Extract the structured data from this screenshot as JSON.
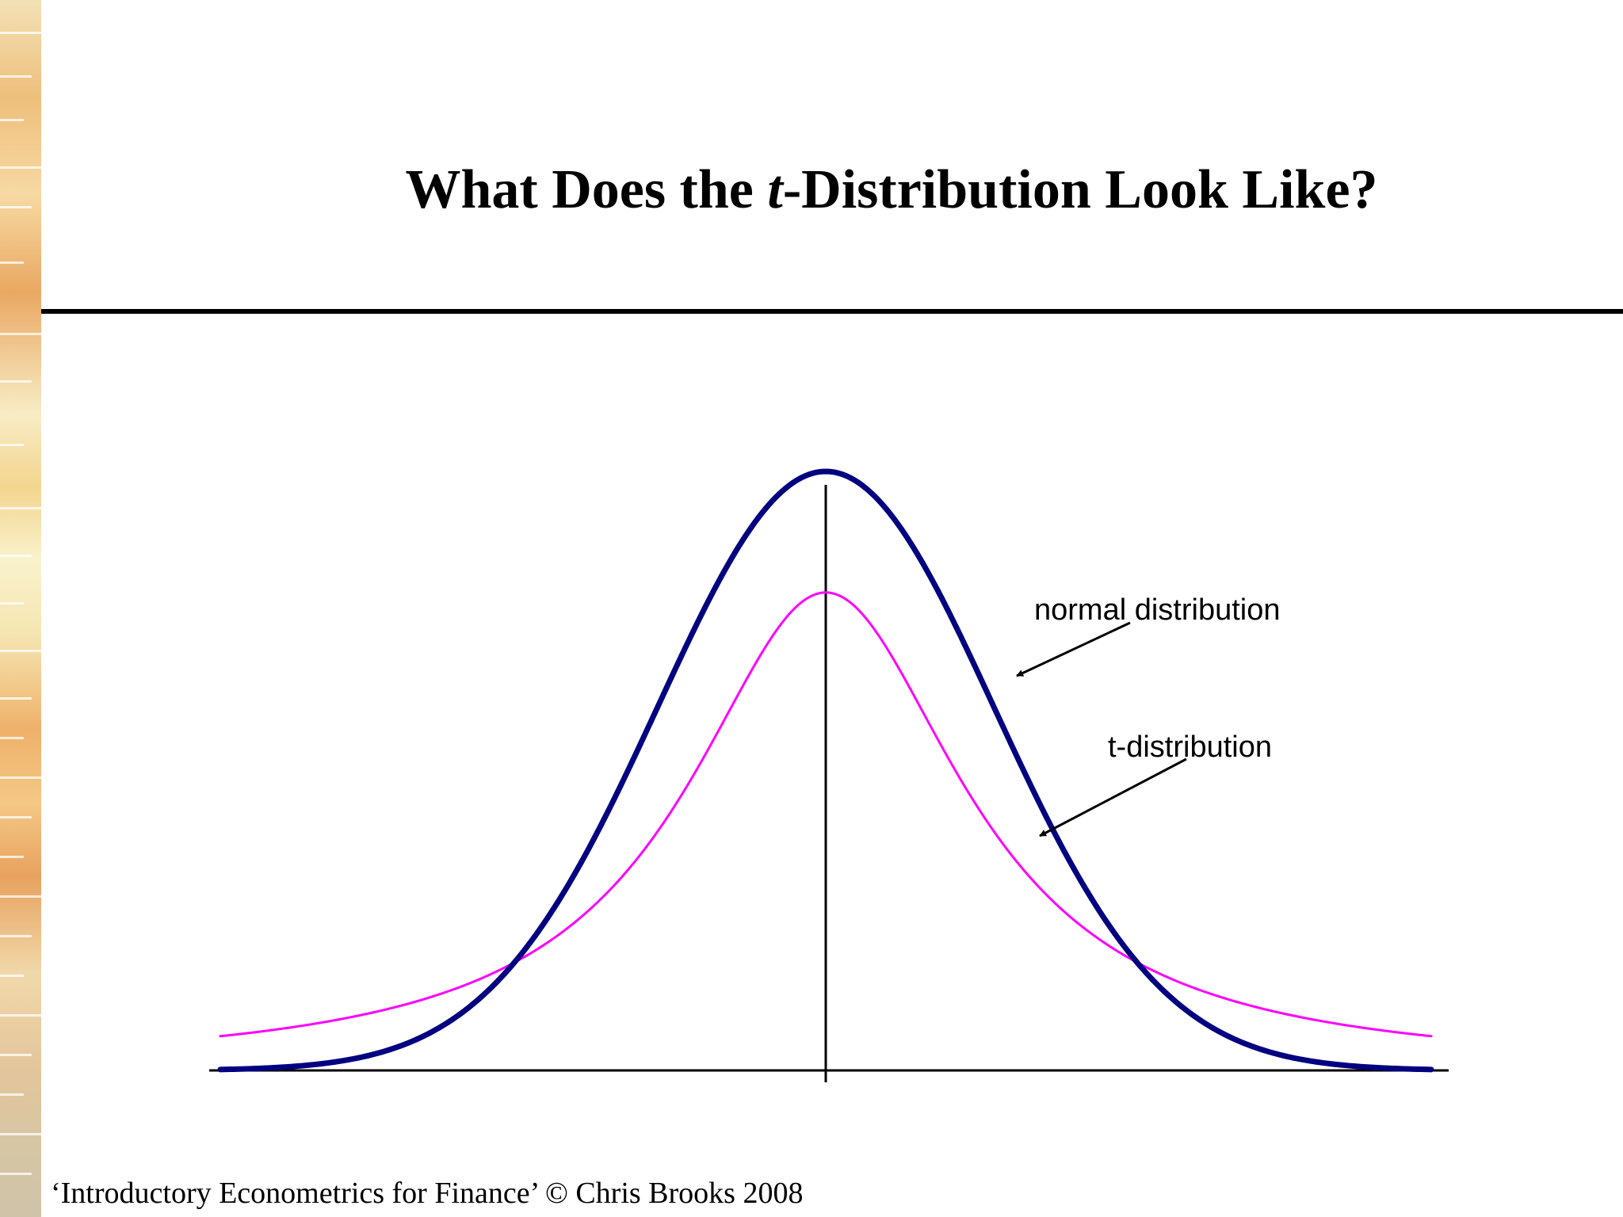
{
  "slide": {
    "title_pre": "What Does the ",
    "title_italic": "t",
    "title_post": "-Distribution Look Like?",
    "footer": "‘Introductory Econometrics for Finance’ © Chris Brooks 2008"
  },
  "chart_data": {
    "type": "line",
    "title": "What Does the t-Distribution Look Like?",
    "xlabel": "",
    "ylabel": "",
    "xlim": [
      -3.6,
      3.6
    ],
    "ylim": [
      0,
      0.4
    ],
    "grid": false,
    "axis_ticks": false,
    "series": [
      {
        "name": "normal distribution",
        "color": "#000080",
        "style": "thick",
        "function": "standard normal density",
        "x": [
          -3.6,
          -3.2,
          -2.8,
          -2.4,
          -2.0,
          -1.6,
          -1.2,
          -0.8,
          -0.4,
          0.0,
          0.4,
          0.8,
          1.2,
          1.6,
          2.0,
          2.4,
          2.8,
          3.2,
          3.6
        ],
        "y": [
          0.0006,
          0.0024,
          0.0079,
          0.0224,
          0.054,
          0.1109,
          0.1942,
          0.2897,
          0.3683,
          0.3989,
          0.3683,
          0.2897,
          0.1942,
          0.1109,
          0.054,
          0.0224,
          0.0079,
          0.0024,
          0.0006
        ]
      },
      {
        "name": "t-distribution",
        "color": "#ff00ff",
        "style": "thin",
        "function": "Student t density, 1 degree of freedom",
        "x": [
          -3.6,
          -3.2,
          -2.8,
          -2.4,
          -2.0,
          -1.6,
          -1.2,
          -0.8,
          -0.4,
          0.0,
          0.4,
          0.8,
          1.2,
          1.6,
          2.0,
          2.4,
          2.8,
          3.2,
          3.6
        ],
        "y": [
          0.0228,
          0.0283,
          0.036,
          0.0471,
          0.0637,
          0.0895,
          0.1306,
          0.1941,
          0.2744,
          0.3183,
          0.2744,
          0.1941,
          0.1306,
          0.0895,
          0.0637,
          0.0471,
          0.036,
          0.0283,
          0.0228
        ]
      }
    ],
    "annotations": [
      {
        "text": "normal distribution",
        "points_to": "normal distribution",
        "at_x": 1.1
      },
      {
        "text": "t-distribution",
        "points_to": "t-distribution",
        "at_x": 1.25
      }
    ]
  }
}
